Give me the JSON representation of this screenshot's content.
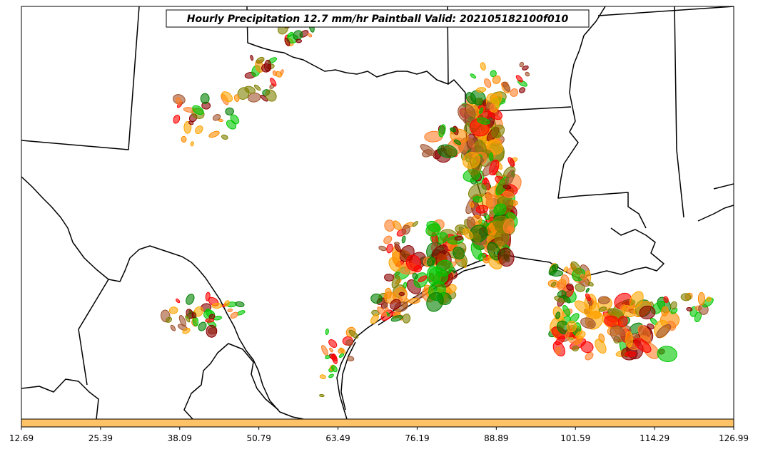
{
  "title": "Hourly Precipitation 12.7 mm/hr Paintball Valid: 202105182100f010",
  "colorbar": {
    "fill_color": "#FFC266",
    "tick_labels": [
      "12.69",
      "25.39",
      "38.09",
      "50.79",
      "63.49",
      "76.19",
      "88.89",
      "101.59",
      "114.29",
      "126.99"
    ]
  },
  "map": {
    "background": "#ffffff",
    "boundary_color": "#000000"
  },
  "paintball_colors": [
    "#00C800",
    "#008000",
    "#8B0000",
    "#FF0000",
    "#FF8C00",
    "#FF7F27",
    "#808000",
    "#FFA500",
    "#A0522D"
  ]
}
